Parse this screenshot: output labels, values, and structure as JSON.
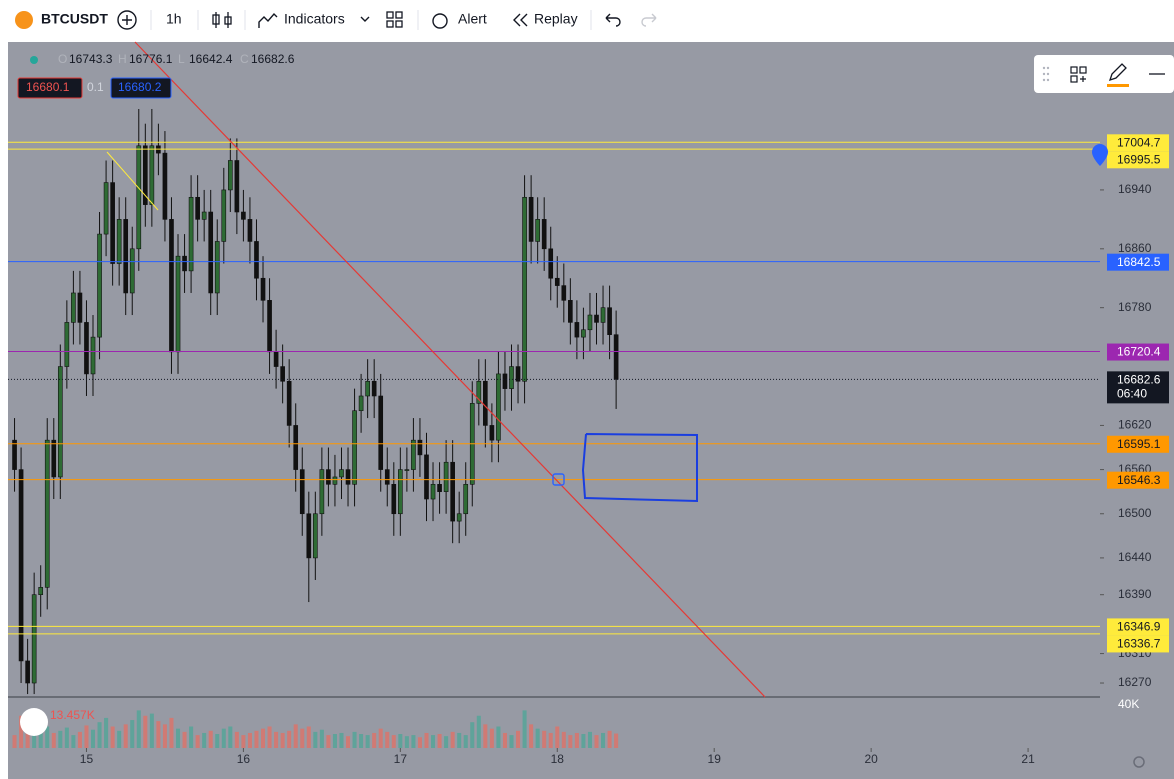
{
  "toolbar": {
    "symbol": "BTCUSDT",
    "interval": "1h",
    "indicators": "Indicators",
    "alert": "Alert",
    "replay": "Replay"
  },
  "chart_data": {
    "type": "candlestick",
    "legend": {
      "open_label": "O",
      "high_label": "H",
      "low_label": "L",
      "close_label": "C",
      "open": 16743.3,
      "high": 16776.1,
      "low": 16642.4,
      "close": 16682.6
    },
    "bid": 16680.1,
    "spread": 0.1,
    "ask": 16680.2,
    "up_color": "#2e6b34",
    "down_color": "#111111",
    "volume_up_color": "#5fa39a",
    "volume_down_color": "#d07a74",
    "xlim": [
      -12,
      155
    ],
    "xticks": [
      {
        "value": 0,
        "label": "15"
      },
      {
        "value": 24,
        "label": "16"
      },
      {
        "value": 48,
        "label": "17"
      },
      {
        "value": 72,
        "label": "18"
      },
      {
        "value": 96,
        "label": "19"
      },
      {
        "value": 120,
        "label": "20"
      },
      {
        "value": 144,
        "label": "21"
      }
    ],
    "ylim": [
      16251,
      17141
    ],
    "yticks": [
      16270,
      16310,
      16390,
      16440,
      16500,
      16560,
      16620,
      16780,
      16860,
      16940
    ],
    "volume_lim": [
      0,
      40000
    ],
    "volume_ticks": [
      {
        "value": 40000,
        "label": "40K"
      }
    ],
    "volume_last": {
      "value": 13457,
      "label": "13.457K"
    },
    "levels": [
      {
        "value": 17004.7,
        "color": "#ffeb3b"
      },
      {
        "value": 16995.5,
        "color": "#ffeb3b"
      },
      {
        "value": 16842.5,
        "color": "#2962ff"
      },
      {
        "value": 16720.4,
        "color": "#9c27b0"
      },
      {
        "value": 16595.1,
        "color": "#ff9800"
      },
      {
        "value": 16546.3,
        "color": "#ff9800"
      },
      {
        "value": 16346.9,
        "color": "#ffeb3b"
      },
      {
        "value": 16336.7,
        "color": "#ffeb3b"
      }
    ],
    "current": {
      "value": 16682.6,
      "countdown": "06:40"
    },
    "x": [
      -11,
      -10,
      -9,
      -8,
      -7,
      -6,
      -5,
      -4,
      -3,
      -2,
      -1,
      0,
      1,
      2,
      3,
      4,
      5,
      6,
      7,
      8,
      9,
      10,
      11,
      12,
      13,
      14,
      15,
      16,
      17,
      18,
      19,
      20,
      21,
      22,
      23,
      24,
      25,
      26,
      27,
      28,
      29,
      30,
      31,
      32,
      33,
      34,
      35,
      36,
      37,
      38,
      39,
      40,
      41,
      42,
      43,
      44,
      45,
      46,
      47,
      48,
      49,
      50,
      51,
      52,
      53,
      54,
      55,
      56,
      57,
      58,
      59,
      60,
      61,
      62,
      63,
      64,
      65,
      66,
      67,
      68,
      69,
      70,
      71,
      72,
      73,
      74,
      75,
      76,
      77,
      78,
      79,
      80,
      81
    ],
    "open": [
      16600,
      16560,
      16300,
      16270,
      16390,
      16400,
      16600,
      16550,
      16700,
      16760,
      16800,
      16760,
      16690,
      16740,
      16880,
      16950,
      16840,
      16900,
      16800,
      16860,
      17000,
      16920,
      17000,
      16990,
      16900,
      16720,
      16850,
      16830,
      16930,
      16900,
      16910,
      16800,
      16870,
      16940,
      16980,
      16910,
      16900,
      16870,
      16820,
      16790,
      16720,
      16700,
      16680,
      16620,
      16560,
      16500,
      16440,
      16500,
      16560,
      16540,
      16550,
      16560,
      16540,
      16640,
      16660,
      16680,
      16660,
      16560,
      16540,
      16500,
      16560,
      16560,
      16600,
      16580,
      16520,
      16540,
      16530,
      16570,
      16490,
      16500,
      16540,
      16650,
      16680,
      16620,
      16600,
      16690,
      16670,
      16700,
      16680,
      16930,
      16870,
      16900,
      16860,
      16820,
      16810,
      16790,
      16760,
      16740,
      16750,
      16770,
      16760,
      16780,
      16743.3
    ],
    "high": [
      16630,
      16590,
      16330,
      16420,
      16430,
      16630,
      16630,
      16730,
      16790,
      16830,
      16830,
      16790,
      16770,
      16910,
      16980,
      16980,
      16930,
      16930,
      16890,
      17050,
      17030,
      17050,
      17030,
      17020,
      16930,
      16880,
      16880,
      16960,
      16960,
      16940,
      16940,
      16900,
      16970,
      17010,
      17010,
      16940,
      16930,
      16900,
      16850,
      16820,
      16750,
      16730,
      16710,
      16650,
      16590,
      16530,
      16530,
      16590,
      16590,
      16580,
      16590,
      16590,
      16670,
      16690,
      16710,
      16710,
      16690,
      16590,
      16570,
      16590,
      16590,
      16630,
      16630,
      16610,
      16570,
      16570,
      16600,
      16600,
      16530,
      16570,
      16680,
      16710,
      16710,
      16650,
      16720,
      16720,
      16730,
      16730,
      16960,
      16960,
      16930,
      16930,
      16890,
      16850,
      16840,
      16820,
      16790,
      16780,
      16800,
      16800,
      16810,
      16810,
      16776.1
    ],
    "low": [
      16530,
      16270,
      16255,
      16255,
      16360,
      16370,
      16520,
      16520,
      16670,
      16730,
      16730,
      16660,
      16660,
      16710,
      16850,
      16810,
      16810,
      16770,
      16770,
      16830,
      16890,
      16890,
      16960,
      16870,
      16690,
      16690,
      16800,
      16800,
      16870,
      16870,
      16770,
      16770,
      16840,
      16910,
      16880,
      16870,
      16840,
      16790,
      16760,
      16690,
      16670,
      16650,
      16590,
      16530,
      16470,
      16380,
      16410,
      16470,
      16510,
      16510,
      16520,
      16510,
      16510,
      16610,
      16630,
      16630,
      16530,
      16510,
      16470,
      16470,
      16530,
      16530,
      16550,
      16490,
      16490,
      16500,
      16500,
      16460,
      16460,
      16470,
      16510,
      16620,
      16590,
      16570,
      16570,
      16640,
      16640,
      16650,
      16650,
      16840,
      16840,
      16830,
      16790,
      16780,
      16760,
      16730,
      16710,
      16710,
      16720,
      16730,
      16730,
      16710,
      16642.4
    ],
    "close": [
      16560,
      16300,
      16270,
      16390,
      16400,
      16600,
      16550,
      16700,
      16760,
      16800,
      16760,
      16690,
      16740,
      16880,
      16950,
      16840,
      16900,
      16800,
      16860,
      17000,
      16920,
      17000,
      16990,
      16900,
      16720,
      16850,
      16830,
      16930,
      16900,
      16910,
      16800,
      16870,
      16940,
      16980,
      16910,
      16900,
      16870,
      16820,
      16790,
      16720,
      16700,
      16680,
      16620,
      16560,
      16500,
      16440,
      16500,
      16560,
      16540,
      16550,
      16560,
      16540,
      16640,
      16660,
      16680,
      16660,
      16560,
      16540,
      16500,
      16560,
      16560,
      16600,
      16580,
      16520,
      16540,
      16530,
      16570,
      16490,
      16500,
      16540,
      16650,
      16680,
      16620,
      16600,
      16690,
      16670,
      16700,
      16680,
      16930,
      16870,
      16900,
      16860,
      16820,
      16810,
      16790,
      16760,
      16740,
      16750,
      16770,
      16760,
      16780,
      16743.3,
      16682.6
    ],
    "volume": [
      12000,
      30000,
      22000,
      25000,
      18000,
      20000,
      14000,
      16000,
      19000,
      12000,
      15000,
      21000,
      17000,
      24000,
      28000,
      20000,
      16000,
      22000,
      26000,
      35000,
      30000,
      32000,
      25000,
      22000,
      28000,
      18000,
      15000,
      20000,
      12000,
      14000,
      16000,
      13000,
      18000,
      20000,
      15000,
      12000,
      14000,
      16000,
      18000,
      20000,
      15000,
      14000,
      16000,
      22000,
      18000,
      20000,
      15000,
      17000,
      12000,
      13000,
      14000,
      11000,
      15000,
      13000,
      12000,
      14000,
      18000,
      15000,
      12000,
      13000,
      11000,
      12000,
      10000,
      14000,
      12000,
      13000,
      11000,
      15000,
      14000,
      12000,
      24000,
      30000,
      22000,
      18000,
      20000,
      14000,
      12000,
      16000,
      35000,
      22000,
      18000,
      16000,
      14000,
      20000,
      15000,
      12000,
      14000,
      13000,
      15000,
      12000,
      14000,
      16000,
      13457
    ]
  }
}
